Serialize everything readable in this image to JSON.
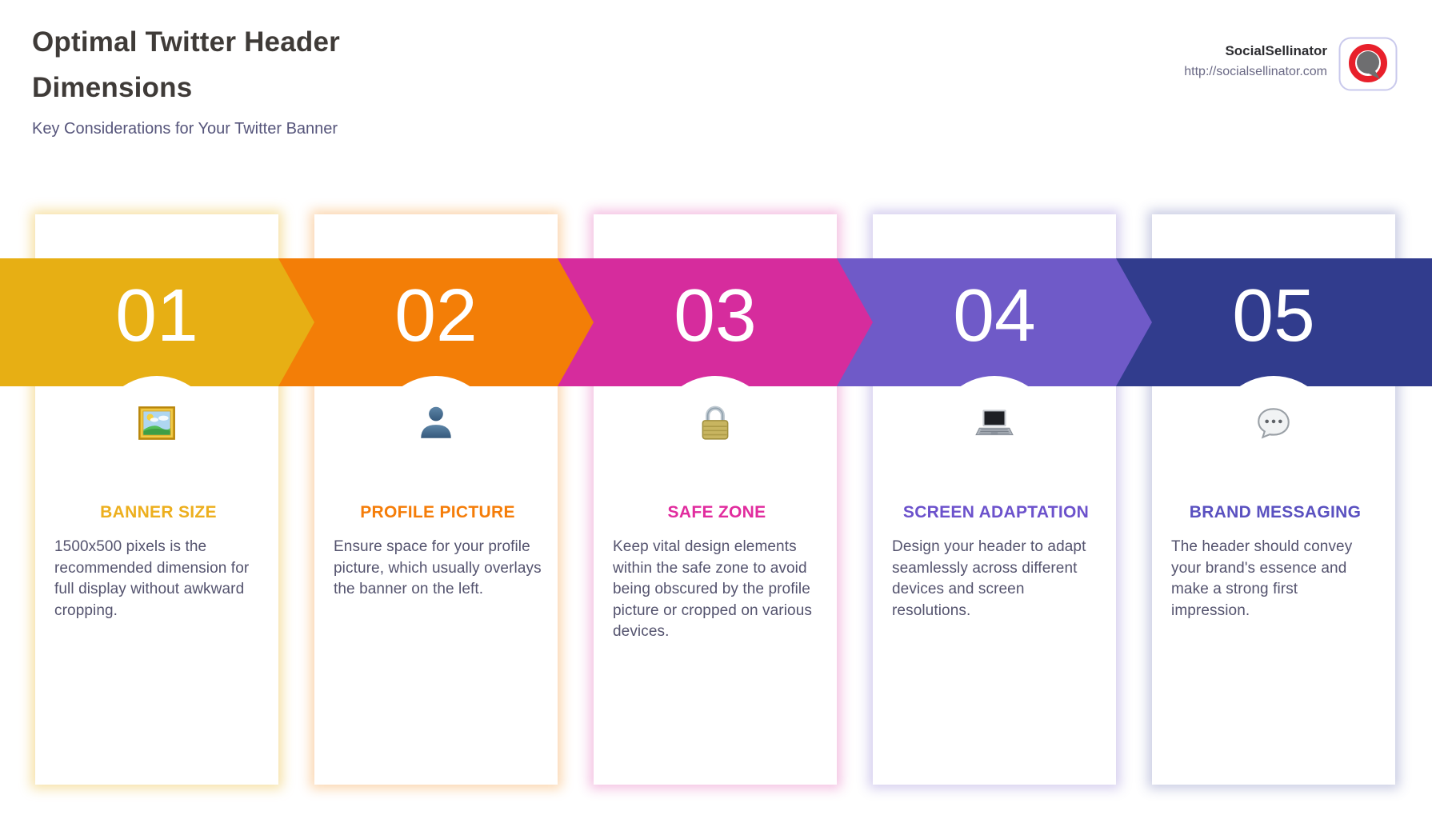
{
  "header": {
    "title": "Optimal Twitter Header Dimensions",
    "subtitle": "Key Considerations for Your Twitter Banner"
  },
  "brand": {
    "name": "SocialSellinator",
    "url": "http://socialsellinator.com",
    "logo_icon": "speech-bubble-ring-logo",
    "logo_ring_color": "#E8202B",
    "logo_bubble_color": "#6E6E70"
  },
  "number_text_color": "#FFFFFF",
  "cards": [
    {
      "number": "01",
      "title": "BANNER SIZE",
      "description": "1500x500 pixels is the recommended dimension for full display without awkward cropping.",
      "icon": "framed-picture-icon",
      "band_color": "#E7AF14",
      "title_color": "#EDAF1E",
      "glow_color": "rgba(231,175,20,0.38)"
    },
    {
      "number": "02",
      "title": "PROFILE PICTURE",
      "description": "Ensure space for your profile picture, which usually overlays the banner on the left.",
      "icon": "person-silhouette-icon",
      "band_color": "#F37E07",
      "title_color": "#F57D09",
      "glow_color": "rgba(243,126,7,0.32)"
    },
    {
      "number": "03",
      "title": "SAFE ZONE",
      "description": "Keep vital design elements within the safe zone to avoid being obscured by the profile picture or cropped on various devices.",
      "icon": "lock-icon",
      "band_color": "#D62C9D",
      "title_color": "#E12C9E",
      "glow_color": "rgba(214,44,157,0.30)"
    },
    {
      "number": "04",
      "title": "SCREEN ADAPTATION",
      "description": "Design your header to adapt seamlessly across different devices and screen resolutions.",
      "icon": "laptop-icon",
      "band_color": "#6F5AC8",
      "title_color": "#6C52CC",
      "glow_color": "rgba(111,90,200,0.30)"
    },
    {
      "number": "05",
      "title": "BRAND MESSAGING",
      "description": "The header should convey your brand's essence and make a strong first impression.",
      "icon": "speech-balloon-icon",
      "band_color": "#313C8D",
      "title_color": "#5A51C0",
      "glow_color": "rgba(73,82,160,0.30)"
    }
  ]
}
